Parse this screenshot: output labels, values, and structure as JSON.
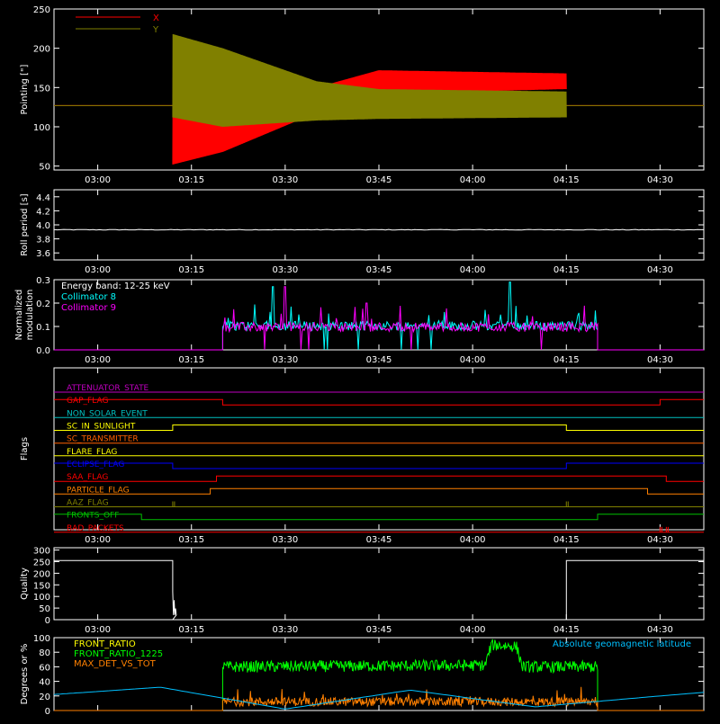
{
  "chart_data": [
    {
      "type": "line",
      "ylabel": "Pointing [\"]",
      "ylim": [
        45,
        250
      ],
      "yticks": [
        "50",
        "100",
        "150",
        "200",
        "250"
      ],
      "legend": {
        "placement": "top-left",
        "entries": [
          {
            "name": "X",
            "color": "#ff0000"
          },
          {
            "name": "Y",
            "color": "#808000"
          }
        ]
      },
      "series": [
        {
          "name": "X",
          "color": "#ff0000",
          "baseline": 127,
          "active_span": [
            "03:12",
            "04:15"
          ],
          "envelope_low": [
            {
              "t": "03:12",
              "v": 52
            },
            {
              "t": "03:20",
              "v": 68
            },
            {
              "t": "03:35",
              "v": 118
            },
            {
              "t": "03:45",
              "v": 142
            },
            {
              "t": "04:15",
              "v": 148
            }
          ],
          "envelope_high": [
            {
              "t": "03:12",
              "v": 130
            },
            {
              "t": "03:20",
              "v": 128
            },
            {
              "t": "03:35",
              "v": 150
            },
            {
              "t": "03:45",
              "v": 172
            },
            {
              "t": "04:15",
              "v": 168
            }
          ]
        },
        {
          "name": "Y",
          "color": "#808000",
          "baseline": 127,
          "active_span": [
            "03:12",
            "04:15"
          ],
          "envelope_low": [
            {
              "t": "03:12",
              "v": 112
            },
            {
              "t": "03:20",
              "v": 100
            },
            {
              "t": "03:35",
              "v": 108
            },
            {
              "t": "03:45",
              "v": 110
            },
            {
              "t": "04:15",
              "v": 112
            }
          ],
          "envelope_high": [
            {
              "t": "03:12",
              "v": 218
            },
            {
              "t": "03:20",
              "v": 200
            },
            {
              "t": "03:35",
              "v": 158
            },
            {
              "t": "03:45",
              "v": 148
            },
            {
              "t": "04:15",
              "v": 145
            }
          ]
        }
      ]
    },
    {
      "type": "line",
      "ylabel": "Roll period [s]",
      "ylim": [
        3.5,
        4.5
      ],
      "yticks": [
        "3.6",
        "3.8",
        "4.0",
        "4.2",
        "4.4"
      ],
      "series": [
        {
          "name": "",
          "color": "#ffffff",
          "value": 3.93
        }
      ]
    },
    {
      "type": "line",
      "ylabel": [
        "Normalized",
        "modulation"
      ],
      "ylim": [
        0,
        0.3
      ],
      "yticks": [
        "0.0",
        "0.1",
        "0.2",
        "0.3"
      ],
      "annotation": "Energy band: 12-25 keV",
      "legend": {
        "placement": "top-left",
        "entries": [
          {
            "name": "Collimator 8",
            "color": "#00ffff"
          },
          {
            "name": "Collimator 9",
            "color": "#ff00ff"
          }
        ]
      },
      "active_span": [
        "03:20",
        "04:20"
      ],
      "series": [
        {
          "name": "Collimator 8",
          "color": "#00ffff",
          "mean": 0.095,
          "peaks": [
            {
              "t": "03:28",
              "v": 0.27
            },
            {
              "t": "04:06",
              "v": 0.29
            }
          ]
        },
        {
          "name": "Collimator 9",
          "color": "#ff00ff",
          "mean": 0.09,
          "peaks": [
            {
              "t": "03:30",
              "v": 0.27
            },
            {
              "t": "03:43",
              "v": 0.2
            }
          ]
        }
      ]
    },
    {
      "type": "line",
      "ylabel": "Flags",
      "flags": [
        {
          "name": "ATTENUATOR_STATE",
          "color": "#c000c0",
          "transitions": []
        },
        {
          "name": "GAP_FLAG",
          "color": "#ff0000",
          "start": 1,
          "transitions": [
            {
              "t": "03:20",
              "to": 0
            },
            {
              "t": "04:30",
              "to": 1
            }
          ]
        },
        {
          "name": "NON_SOLAR_EVENT",
          "color": "#00c0c0",
          "transitions": []
        },
        {
          "name": "SC_IN_SUNLIGHT",
          "color": "#ffff00",
          "start": 0,
          "transitions": [
            {
              "t": "03:12",
              "to": 1
            },
            {
              "t": "04:15",
              "to": 0
            }
          ]
        },
        {
          "name": "SC_TRANSMITTER",
          "color": "#ff6000",
          "transitions": []
        },
        {
          "name": "FLARE_FLAG",
          "color": "#ffff00",
          "transitions": []
        },
        {
          "name": "ECLIPSE_FLAG",
          "color": "#0000ff",
          "start": 1,
          "transitions": [
            {
              "t": "03:12",
              "to": 0
            },
            {
              "t": "04:15",
              "to": 1
            }
          ]
        },
        {
          "name": "SAA_FLAG",
          "color": "#ff0000",
          "start": 0,
          "transitions": [
            {
              "t": "03:19",
              "to": 1
            },
            {
              "t": "04:31",
              "to": 0
            }
          ]
        },
        {
          "name": "PARTICLE_FLAG",
          "color": "#ff8000",
          "start": 0,
          "transitions": [
            {
              "t": "03:18",
              "to": 1
            },
            {
              "t": "04:28",
              "to": 0
            }
          ]
        },
        {
          "name": "AAZ_FLAG",
          "color": "#808000",
          "start": 0,
          "blips": [
            "03:12",
            "04:15"
          ]
        },
        {
          "name": "FRONTS_OFF",
          "color": "#00c000",
          "start": 1,
          "transitions": [
            {
              "t": "03:07",
              "to": 0
            },
            {
              "t": "04:20",
              "to": 1
            }
          ]
        },
        {
          "name": "BAD_PACKETS",
          "color": "#ff0000",
          "start": 0,
          "blips": [
            "04:30",
            "04:31"
          ]
        }
      ]
    },
    {
      "type": "line",
      "ylabel": "Quality",
      "ylim": [
        0,
        310
      ],
      "yticks": [
        "0",
        "50",
        "100",
        "150",
        "200",
        "250",
        "300"
      ],
      "series": [
        {
          "name": "",
          "color": "#ffffff",
          "segments": [
            {
              "from": "02:53",
              "to": "03:12",
              "v": 255
            },
            {
              "from": "03:12",
              "to": "04:15",
              "v": 0
            },
            {
              "from": "04:15",
              "to": "04:37",
              "v": 255
            }
          ]
        }
      ]
    },
    {
      "type": "line",
      "ylabel": "Degrees or %",
      "ylim": [
        0,
        100
      ],
      "yticks": [
        "0",
        "20",
        "40",
        "60",
        "80",
        "100"
      ],
      "annotation": "Absolute geomagnetic latitude",
      "legend": {
        "placement": "top-left",
        "entries": [
          {
            "name": "FRONT_RATIO",
            "color": "#ffff00"
          },
          {
            "name": "FRONT_RATIO_1225",
            "color": "#00ff00"
          },
          {
            "name": "MAX_DET_VS_TOT",
            "color": "#ff8000"
          }
        ]
      },
      "series": [
        {
          "name": "FRONT_RATIO_1225",
          "color": "#00ff00",
          "active_span": [
            "03:20",
            "04:20"
          ],
          "levels": [
            {
              "t": "03:20",
              "v": 60
            },
            {
              "t": "04:02",
              "v": 62
            },
            {
              "t": "04:03",
              "v": 90
            },
            {
              "t": "04:07",
              "v": 88
            },
            {
              "t": "04:08",
              "v": 60
            },
            {
              "t": "04:20",
              "v": 60
            }
          ]
        },
        {
          "name": "MAX_DET_VS_TOT",
          "color": "#ff8000",
          "active_span": [
            "03:20",
            "04:20"
          ],
          "mean": 12
        },
        {
          "name": "Absolute geomagnetic latitude",
          "color": "#00c0ff",
          "points": [
            {
              "t": "02:53",
              "v": 22
            },
            {
              "t": "03:10",
              "v": 32
            },
            {
              "t": "03:30",
              "v": 2
            },
            {
              "t": "03:50",
              "v": 28
            },
            {
              "t": "04:10",
              "v": 5
            },
            {
              "t": "04:30",
              "v": 20
            },
            {
              "t": "04:37",
              "v": 25
            }
          ]
        }
      ]
    }
  ],
  "x_axis": {
    "range": [
      "02:53",
      "04:37"
    ],
    "ticks": [
      "03:00",
      "03:15",
      "03:30",
      "03:45",
      "04:00",
      "04:15",
      "04:30"
    ]
  },
  "colors": {
    "background": "#000000",
    "axes": "#ffffff"
  }
}
